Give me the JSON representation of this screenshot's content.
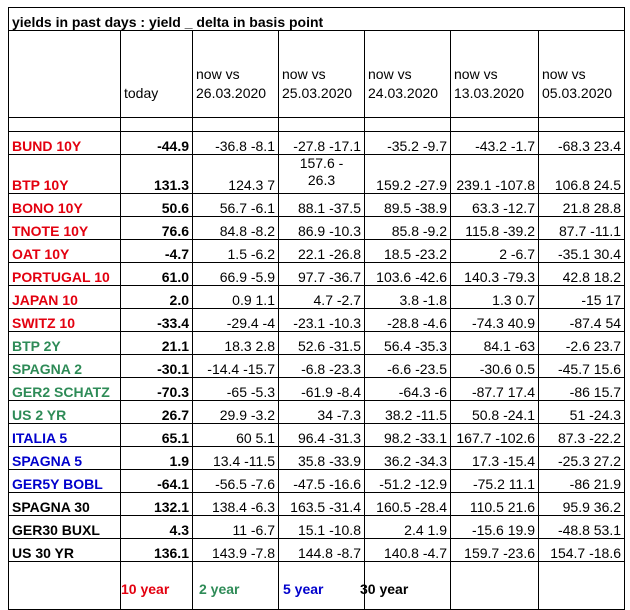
{
  "title": "yields in past days : yield _ delta in basis point",
  "headers": {
    "today": "today",
    "c1": [
      "now vs",
      "26.03.2020"
    ],
    "c2": [
      "now vs",
      "25.03.2020"
    ],
    "c3": [
      "now vs",
      "24.03.2020"
    ],
    "c4": [
      "now vs",
      "13.03.2020"
    ],
    "c5": [
      "now vs",
      "05.03.2020"
    ]
  },
  "rows": [
    {
      "name": "BUND 10Y",
      "color": "#e3000f",
      "today": "-44.9",
      "c1": "-36.8 -8.1",
      "c2": "-27.8 -17.1",
      "c3": "-35.2 -9.7",
      "c4": "-43.2 -1.7",
      "c5": "-68.3 23.4"
    },
    {
      "name": "BTP 10Y",
      "color": "#e3000f",
      "today": "131.3",
      "c1": "124.3 7",
      "c2a": "157.6 -",
      "c2b": "26.3",
      "c3": "159.2 -27.9",
      "c4": "239.1 -107.8",
      "c5": "106.8 24.5"
    },
    {
      "name": "BONO 10Y",
      "color": "#e3000f",
      "today": "50.6",
      "c1": "56.7 -6.1",
      "c2": "88.1 -37.5",
      "c3": "89.5 -38.9",
      "c4": "63.3 -12.7",
      "c5": "21.8 28.8"
    },
    {
      "name": "TNOTE 10Y",
      "color": "#e3000f",
      "today": "76.6",
      "c1": "84.8 -8.2",
      "c2": "86.9 -10.3",
      "c3": "85.8 -9.2",
      "c4": "115.8 -39.2",
      "c5": "87.7 -11.1"
    },
    {
      "name": "OAT 10Y",
      "color": "#e3000f",
      "today": "-4.7",
      "c1": "1.5 -6.2",
      "c2": "22.1 -26.8",
      "c3": "18.5 -23.2",
      "c4": "2 -6.7",
      "c5": "-35.1 30.4"
    },
    {
      "name": "PORTUGAL 10",
      "color": "#e3000f",
      "today": "61.0",
      "c1": "66.9 -5.9",
      "c2": "97.7 -36.7",
      "c3": "103.6 -42.6",
      "c4": "140.3 -79.3",
      "c5": "42.8 18.2"
    },
    {
      "name": "JAPAN 10",
      "color": "#e3000f",
      "today": "2.0",
      "c1": "0.9 1.1",
      "c2": "4.7 -2.7",
      "c3": "3.8 -1.8",
      "c4": "1.3 0.7",
      "c5": "-15 17"
    },
    {
      "name": "SWITZ 10",
      "color": "#e3000f",
      "today": "-33.4",
      "c1": "-29.4 -4",
      "c2": "-23.1 -10.3",
      "c3": "-28.8 -4.6",
      "c4": "-74.3 40.9",
      "c5": "-87.4 54"
    },
    {
      "name": "BTP 2Y",
      "color": "#2e8b57",
      "today": "21.1",
      "c1": "18.3 2.8",
      "c2": "52.6 -31.5",
      "c3": "56.4 -35.3",
      "c4": "84.1 -63",
      "c5": "-2.6 23.7"
    },
    {
      "name": "SPAGNA 2",
      "color": "#2e8b57",
      "today": "-30.1",
      "c1": "-14.4 -15.7",
      "c2": "-6.8 -23.3",
      "c3": "-6.6 -23.5",
      "c4": "-30.6 0.5",
      "c5": "-45.7 15.6"
    },
    {
      "name": "GER2 SCHATZ",
      "color": "#2e8b57",
      "today": "-70.3",
      "c1": "-65 -5.3",
      "c2": "-61.9 -8.4",
      "c3": "-64.3 -6",
      "c4": "-87.7 17.4",
      "c5": "-86 15.7"
    },
    {
      "name": "US 2 YR",
      "color": "#2e8b57",
      "today": "26.7",
      "c1": "29.9 -3.2",
      "c2": "34 -7.3",
      "c3": "38.2 -11.5",
      "c4": "50.8 -24.1",
      "c5": "51 -24.3"
    },
    {
      "name": "ITALIA 5",
      "color": "#0000cc",
      "today": "65.1",
      "c1": "60 5.1",
      "c2": "96.4 -31.3",
      "c3": "98.2 -33.1",
      "c4": "167.7 -102.6",
      "c5": "87.3 -22.2"
    },
    {
      "name": "SPAGNA 5",
      "color": "#0000cc",
      "today": "1.9",
      "c1": "13.4 -11.5",
      "c2": "35.8 -33.9",
      "c3": "36.2 -34.3",
      "c4": "17.3 -15.4",
      "c5": "-25.3 27.2"
    },
    {
      "name": "GER5Y BOBL",
      "color": "#0000cc",
      "today": "-64.1",
      "c1": "-56.5 -7.6",
      "c2": "-47.5 -16.6",
      "c3": "-51.2 -12.9",
      "c4": "-75.2 11.1",
      "c5": "-86 21.9"
    },
    {
      "name": "SPAGNA 30",
      "color": "#000000",
      "today": "132.1",
      "c1": "138.4 -6.3",
      "c2": "163.5 -31.4",
      "c3": "160.5 -28.4",
      "c4": "110.5 21.6",
      "c5": "95.9 36.2"
    },
    {
      "name": "GER30 BUXL",
      "color": "#000000",
      "today": "4.3",
      "c1": "11 -6.7",
      "c2": "15.1 -10.8",
      "c3": "2.4 1.9",
      "c4": "-15.6 19.9",
      "c5": "-48.8 53.1"
    },
    {
      "name": "US 30 YR",
      "color": "#000000",
      "today": "136.1",
      "c1": "143.9 -7.8",
      "c2": "144.8 -8.7",
      "c3": "140.8 -4.7",
      "c4": "159.7 -23.6",
      "c5": "154.7 -18.6"
    }
  ],
  "legend": [
    {
      "label": "10 year",
      "color": "#e3000f"
    },
    {
      "label": "2 year",
      "color": "#2e8b57"
    },
    {
      "label": "5 year",
      "color": "#0000cc"
    },
    {
      "label": "30 year",
      "color": "#000000"
    }
  ]
}
